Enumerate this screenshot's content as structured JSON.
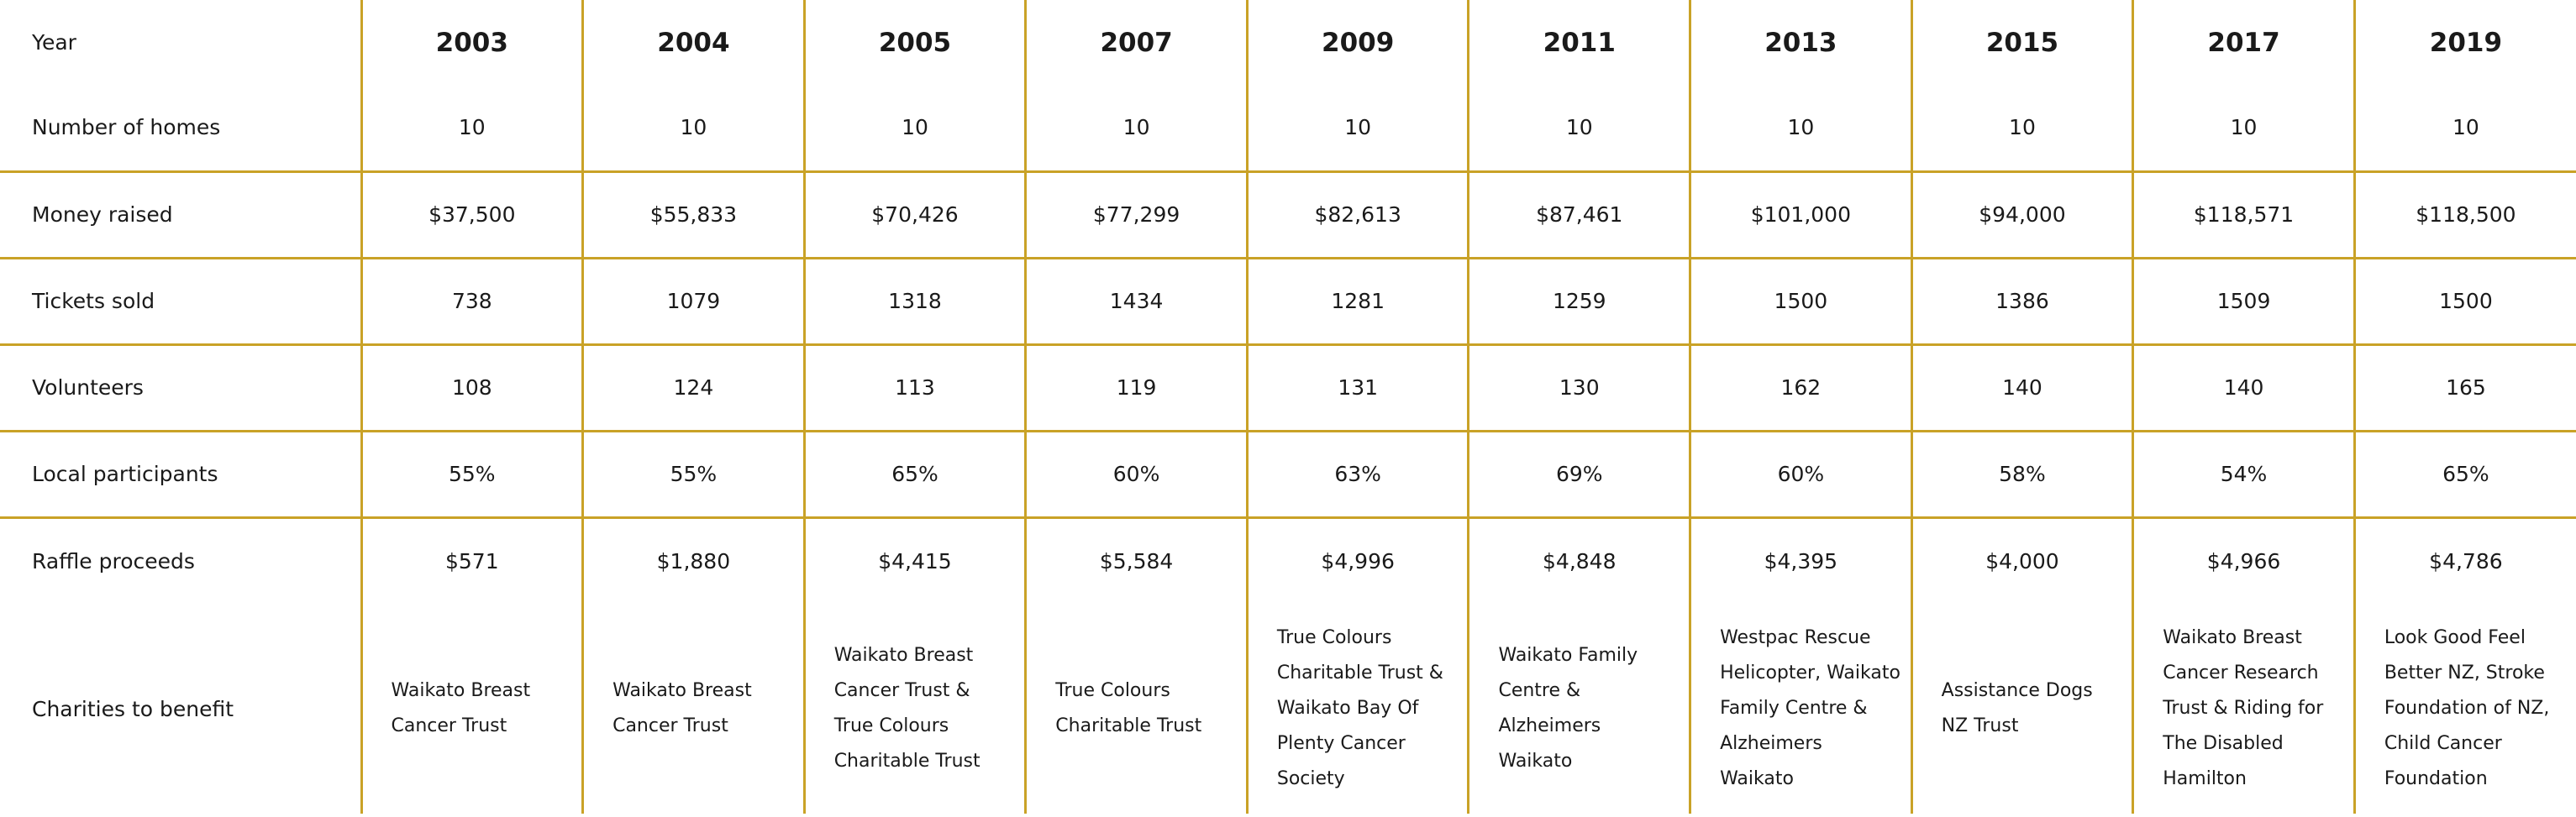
{
  "table": {
    "header_label": "Year",
    "years": [
      "2003",
      "2004",
      "2005",
      "2007",
      "2009",
      "2011",
      "2013",
      "2015",
      "2017",
      "2019"
    ],
    "rows": [
      {
        "label": "Number of homes",
        "values": [
          "10",
          "10",
          "10",
          "10",
          "10",
          "10",
          "10",
          "10",
          "10",
          "10"
        ]
      },
      {
        "label": "Money raised",
        "values": [
          "$37,500",
          "$55,833",
          "$70,426",
          "$77,299",
          "$82,613",
          "$87,461",
          "$101,000",
          "$94,000",
          "$118,571",
          "$118,500"
        ]
      },
      {
        "label": "Tickets sold",
        "values": [
          "738",
          "1079",
          "1318",
          "1434",
          "1281",
          "1259",
          "1500",
          "1386",
          "1509",
          "1500"
        ]
      },
      {
        "label": "Volunteers",
        "values": [
          "108",
          "124",
          "113",
          "119",
          "131",
          "130",
          "162",
          "140",
          "140",
          "165"
        ]
      },
      {
        "label": "Local participants",
        "values": [
          "55%",
          "55%",
          "65%",
          "60%",
          "63%",
          "69%",
          "60%",
          "58%",
          "54%",
          "65%"
        ]
      },
      {
        "label": "Raffle proceeds",
        "values": [
          "$571",
          "$1,880",
          "$4,415",
          "$5,584",
          "$4,996",
          "$4,848",
          "$4,395",
          "$4,000",
          "$4,966",
          "$4,786"
        ]
      }
    ],
    "charities": {
      "label": "Charities to benefit",
      "values": [
        [
          "Waikato Breast",
          "Cancer Trust"
        ],
        [
          "Waikato Breast",
          "Cancer Trust"
        ],
        [
          "Waikato Breast",
          "Cancer Trust &",
          "True Colours",
          "Charitable Trust"
        ],
        [
          "True Colours",
          "Charitable Trust"
        ],
        [
          "True Colours",
          "Charitable Trust &",
          "Waikato Bay Of",
          "Plenty Cancer",
          "Society"
        ],
        [
          "Waikato Family",
          "Centre &",
          "Alzheimers",
          "Waikato"
        ],
        [
          "Westpac Rescue",
          "Helicopter, Waikato",
          "Family Centre &",
          "Alzheimers",
          "Waikato"
        ],
        [
          "Assistance Dogs",
          "NZ Trust"
        ],
        [
          "Waikato Breast",
          "Cancer Research",
          "Trust & Riding for",
          "The Disabled",
          "Hamilton"
        ],
        [
          "Look Good Feel",
          "Better NZ, Stroke",
          "Foundation of NZ,",
          "Child Cancer",
          "Foundation"
        ]
      ]
    }
  }
}
